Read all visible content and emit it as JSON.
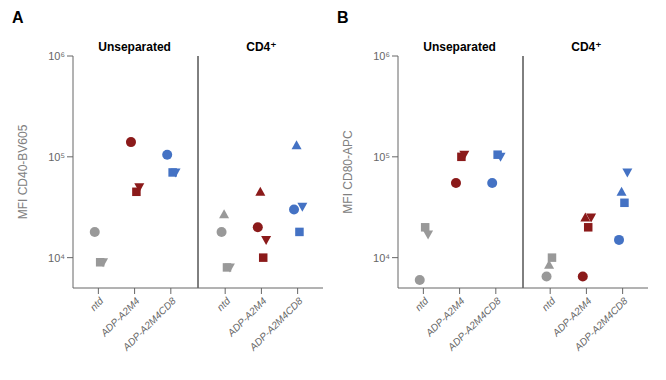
{
  "chart_data": [
    {
      "type": "scatter",
      "title": "A",
      "annotations": [
        "Unseparated",
        "CD4⁺"
      ],
      "y_label": "MFI CD40-BV605",
      "categories": [
        "ntd",
        "ADP-A2M4",
        "ADP-A2M4CD8",
        "ntd",
        "ADP-A2M4",
        "ADP-A2M4CD8"
      ],
      "colors": [
        "#999999",
        "#8B1A1A",
        "#4472C4",
        "#999999",
        "#8B1A1A",
        "#4472C4"
      ],
      "log": "y",
      "ylim": [
        5000,
        1000000
      ],
      "yticks": [
        {
          "value": 10000,
          "label": "10⁴"
        },
        {
          "value": 100000,
          "label": "10⁵"
        },
        {
          "value": 1000000,
          "label": "10⁶"
        }
      ],
      "grid": false,
      "series": [
        {
          "marker": "circle",
          "values": [
            18000,
            140000,
            105000,
            18000,
            20000,
            30000
          ]
        },
        {
          "marker": "square",
          "values": [
            9000,
            45000,
            70000,
            8000,
            10000,
            18000
          ]
        },
        {
          "marker": "triangle-down",
          "values": [
            9000,
            50000,
            70000,
            8000,
            15000,
            32000
          ]
        },
        {
          "marker": "triangle-up",
          "values": [
            null,
            null,
            null,
            27000,
            45000,
            130000
          ]
        }
      ]
    },
    {
      "type": "scatter",
      "title": "B",
      "annotations": [
        "Unseparated",
        "CD4⁺"
      ],
      "y_label": "MFI CD80-APC",
      "categories": [
        "ntd",
        "ADP-A2M4",
        "ADP-A2M4CD8",
        "ntd",
        "ADP-A2M4",
        "ADP-A2M4CD8"
      ],
      "colors": [
        "#999999",
        "#8B1A1A",
        "#4472C4",
        "#999999",
        "#8B1A1A",
        "#4472C4"
      ],
      "log": "y",
      "ylim": [
        5000,
        1000000
      ],
      "yticks": [
        {
          "value": 10000,
          "label": "10⁴"
        },
        {
          "value": 100000,
          "label": "10⁵"
        },
        {
          "value": 1000000,
          "label": "10⁶"
        }
      ],
      "grid": false,
      "series": [
        {
          "marker": "circle",
          "values": [
            6000,
            55000,
            55000,
            6500,
            6500,
            15000
          ]
        },
        {
          "marker": "square",
          "values": [
            20000,
            100000,
            105000,
            10000,
            20000,
            35000
          ]
        },
        {
          "marker": "triangle-down",
          "values": [
            17000,
            105000,
            100000,
            null,
            25000,
            70000
          ]
        },
        {
          "marker": "triangle-up",
          "values": [
            null,
            null,
            null,
            8500,
            25000,
            45000
          ]
        }
      ]
    }
  ]
}
